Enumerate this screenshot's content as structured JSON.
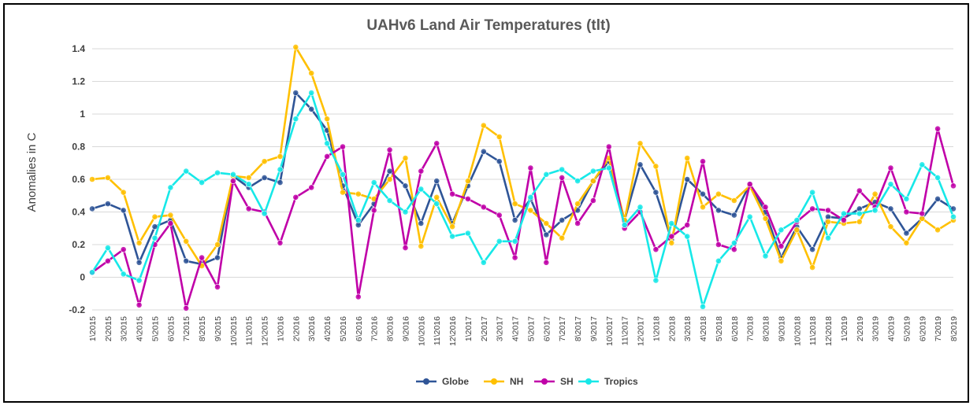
{
  "chart_data": {
    "type": "line",
    "title": "UAHv6 Land Air Temperatures (tlt)",
    "xlabel": "",
    "ylabel": "Anomalies in C",
    "ylim": [
      -0.2,
      1.4
    ],
    "yticks": [
      "-0.2",
      "0",
      "0.2",
      "0.4",
      "0.6",
      "0.8",
      "1",
      "1.2",
      "1.4"
    ],
    "grid": true,
    "legend": "bottom",
    "categories": [
      "1\\2015",
      "2\\2015",
      "3\\2015",
      "4\\2015",
      "5\\2015",
      "6\\2015",
      "7\\2015",
      "8\\2015",
      "9\\2015",
      "10\\2015",
      "11\\2015",
      "12\\2015",
      "1\\2016",
      "2\\2016",
      "3\\2016",
      "4\\2016",
      "5\\2016",
      "6\\2016",
      "7\\2016",
      "8\\2016",
      "9\\2016",
      "10\\2016",
      "11\\2016",
      "12\\2016",
      "1\\2017",
      "2\\2017",
      "3\\2017",
      "4\\2017",
      "5\\2017",
      "6\\2017",
      "7\\2017",
      "8\\2017",
      "9\\2017",
      "10\\2017",
      "11\\2017",
      "12\\2017",
      "1\\2018",
      "2\\2018",
      "3\\2018",
      "4\\2018",
      "5\\2018",
      "6\\2018",
      "7\\2018",
      "8\\2018",
      "9\\2018",
      "10\\2018",
      "11\\2018",
      "12\\2018",
      "1\\2019",
      "2\\2019",
      "3\\2019",
      "4\\2019",
      "5\\2019",
      "6\\2019",
      "7\\2019",
      "8\\2019"
    ],
    "series": [
      {
        "name": "Globe",
        "color": "#2f5597",
        "values": [
          0.42,
          0.45,
          0.41,
          0.09,
          0.31,
          0.35,
          0.1,
          0.08,
          0.12,
          0.62,
          0.55,
          0.61,
          0.58,
          1.13,
          1.03,
          0.9,
          0.56,
          0.32,
          0.45,
          0.65,
          0.56,
          0.33,
          0.59,
          0.33,
          0.56,
          0.77,
          0.71,
          0.35,
          0.48,
          0.26,
          0.35,
          0.41,
          0.59,
          0.71,
          0.35,
          0.69,
          0.52,
          0.23,
          0.6,
          0.51,
          0.41,
          0.38,
          0.57,
          0.4,
          0.12,
          0.31,
          0.17,
          0.37,
          0.36,
          0.42,
          0.46,
          0.42,
          0.27,
          0.36,
          0.48,
          0.42
        ]
      },
      {
        "name": "NH",
        "color": "#ffc000",
        "values": [
          0.6,
          0.61,
          0.52,
          0.21,
          0.37,
          0.38,
          0.22,
          0.07,
          0.2,
          0.62,
          0.61,
          0.71,
          0.74,
          1.41,
          1.25,
          0.97,
          0.52,
          0.51,
          0.48,
          0.6,
          0.73,
          0.19,
          0.49,
          0.31,
          0.59,
          0.93,
          0.86,
          0.45,
          0.41,
          0.33,
          0.24,
          0.45,
          0.59,
          0.73,
          0.35,
          0.82,
          0.68,
          0.21,
          0.73,
          0.43,
          0.51,
          0.47,
          0.56,
          0.36,
          0.1,
          0.29,
          0.06,
          0.34,
          0.33,
          0.34,
          0.51,
          0.31,
          0.21,
          0.36,
          0.29,
          0.35
        ]
      },
      {
        "name": "SH",
        "color": "#c000a8",
        "values": [
          0.03,
          0.1,
          0.17,
          -0.17,
          0.2,
          0.33,
          -0.19,
          0.12,
          -0.06,
          0.59,
          0.42,
          0.4,
          0.21,
          0.49,
          0.55,
          0.74,
          0.8,
          -0.12,
          0.41,
          0.78,
          0.18,
          0.65,
          0.82,
          0.51,
          0.48,
          0.43,
          0.38,
          0.12,
          0.67,
          0.09,
          0.61,
          0.33,
          0.47,
          0.8,
          0.3,
          0.4,
          0.17,
          0.25,
          0.32,
          0.71,
          0.2,
          0.17,
          0.57,
          0.43,
          0.19,
          0.34,
          0.42,
          0.41,
          0.35,
          0.53,
          0.43,
          0.67,
          0.4,
          0.39,
          0.91,
          0.56
        ]
      },
      {
        "name": "Tropics",
        "color": "#17e8e8",
        "values": [
          0.03,
          0.18,
          0.02,
          -0.02,
          0.24,
          0.55,
          0.65,
          0.58,
          0.64,
          0.63,
          0.57,
          0.39,
          0.66,
          0.97,
          1.13,
          0.82,
          0.63,
          0.35,
          0.58,
          0.47,
          0.4,
          0.54,
          0.45,
          0.25,
          0.27,
          0.09,
          0.22,
          0.22,
          0.49,
          0.63,
          0.66,
          0.59,
          0.65,
          0.67,
          0.32,
          0.43,
          -0.02,
          0.33,
          0.25,
          -0.18,
          0.1,
          0.21,
          0.37,
          0.13,
          0.29,
          0.35,
          0.52,
          0.24,
          0.39,
          0.39,
          0.41,
          0.57,
          0.48,
          0.69,
          0.61,
          0.37
        ]
      }
    ]
  }
}
